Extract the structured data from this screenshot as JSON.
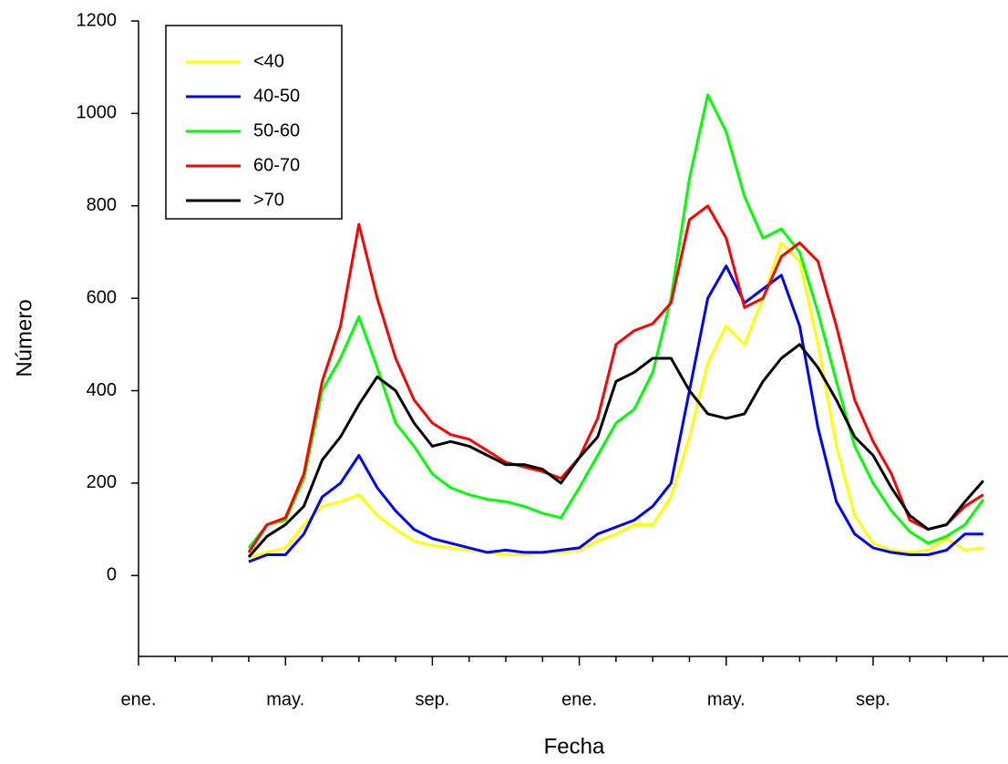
{
  "chart_data": {
    "type": "line",
    "x_label": "Fecha",
    "y_label": "Número",
    "categories": [
      "ene.",
      null,
      null,
      null,
      null,
      null,
      null,
      null,
      "may.",
      null,
      null,
      null,
      null,
      null,
      null,
      null,
      "sep.",
      null,
      null,
      null,
      null,
      null,
      null,
      null,
      "ene.",
      null,
      null,
      null,
      null,
      null,
      null,
      null,
      "may.",
      null,
      null,
      null,
      null,
      null,
      null,
      null,
      "sep.",
      null,
      null,
      null,
      null,
      null,
      null,
      null
    ],
    "ylim": [
      -175,
      1200
    ],
    "yticks": [
      0,
      200,
      400,
      600,
      800,
      1000,
      1200
    ],
    "legend": "upper left",
    "series": [
      {
        "name": "<40",
        "color": "#ffff00",
        "values": [
          null,
          null,
          null,
          null,
          null,
          null,
          40,
          50,
          60,
          110,
          150,
          160,
          175,
          130,
          100,
          75,
          65,
          60,
          55,
          50,
          45,
          45,
          50,
          50,
          55,
          75,
          90,
          110,
          110,
          170,
          300,
          460,
          540,
          500,
          600,
          720,
          680,
          500,
          280,
          130,
          70,
          55,
          50,
          55,
          80,
          55,
          60,
          null
        ]
      },
      {
        "name": "40-50",
        "color": "#0000ff",
        "values": [
          null,
          null,
          null,
          null,
          null,
          null,
          30,
          45,
          45,
          90,
          170,
          200,
          260,
          190,
          140,
          100,
          80,
          70,
          60,
          50,
          55,
          50,
          50,
          55,
          60,
          90,
          105,
          120,
          150,
          200,
          400,
          600,
          670,
          590,
          620,
          650,
          540,
          320,
          160,
          90,
          60,
          50,
          45,
          45,
          55,
          90,
          90,
          null
        ]
      },
      {
        "name": "50-60",
        "color": "#00ff00",
        "values": [
          null,
          null,
          null,
          null,
          null,
          null,
          60,
          110,
          120,
          210,
          400,
          470,
          560,
          450,
          330,
          280,
          220,
          190,
          175,
          165,
          160,
          150,
          135,
          125,
          190,
          260,
          330,
          360,
          440,
          600,
          860,
          1040,
          960,
          820,
          730,
          750,
          700,
          570,
          420,
          280,
          200,
          140,
          95,
          70,
          85,
          110,
          165,
          null
        ]
      },
      {
        "name": "60-70",
        "color": "#ff0000",
        "values": [
          null,
          null,
          null,
          null,
          null,
          null,
          50,
          110,
          125,
          220,
          420,
          540,
          760,
          600,
          470,
          380,
          330,
          305,
          295,
          270,
          245,
          235,
          225,
          210,
          255,
          340,
          500,
          530,
          545,
          590,
          770,
          800,
          730,
          580,
          600,
          690,
          720,
          680,
          540,
          380,
          290,
          220,
          120,
          100,
          110,
          150,
          175,
          null
        ]
      },
      {
        "name": ">70",
        "color": "#000000",
        "values": [
          null,
          null,
          null,
          null,
          null,
          null,
          40,
          85,
          110,
          150,
          250,
          300,
          370,
          430,
          400,
          330,
          280,
          290,
          280,
          260,
          240,
          240,
          230,
          200,
          255,
          300,
          420,
          440,
          470,
          470,
          400,
          350,
          340,
          350,
          420,
          470,
          500,
          450,
          380,
          300,
          260,
          190,
          130,
          100,
          110,
          160,
          205,
          null
        ]
      }
    ]
  }
}
